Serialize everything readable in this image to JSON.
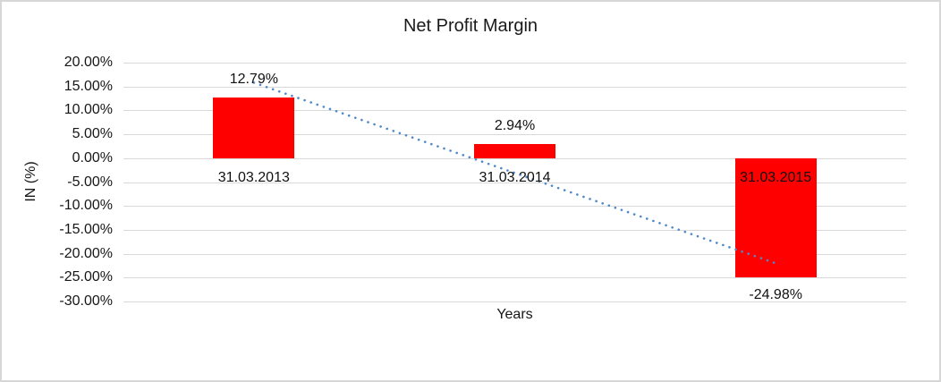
{
  "chart_data": {
    "type": "bar",
    "title": "Net Profit Margin",
    "xlabel": "Years",
    "ylabel": "IN (%)",
    "categories": [
      "31.03.2013",
      "31.03.2014",
      "31.03.2015"
    ],
    "values": [
      12.79,
      2.94,
      -24.98
    ],
    "data_labels": [
      "12.79%",
      "2.94%",
      "-24.98%"
    ],
    "ylim": [
      -30,
      20
    ],
    "ytick_step": 5,
    "ytick_labels": [
      "20.00%",
      "15.00%",
      "10.00%",
      "5.00%",
      "0.00%",
      "-5.00%",
      "-10.00%",
      "-15.00%",
      "-20.00%",
      "-25.00%",
      "-30.00%"
    ],
    "grid": true,
    "legend": "none",
    "bar_color": "#FF0000",
    "gridline_color": "#D9D9D9",
    "frame_border_color": "#D7D7D7",
    "trendline": {
      "type": "linear",
      "style": "dotted",
      "color": "#5089C8",
      "start_value": 15.8,
      "end_value": -22.0
    }
  }
}
